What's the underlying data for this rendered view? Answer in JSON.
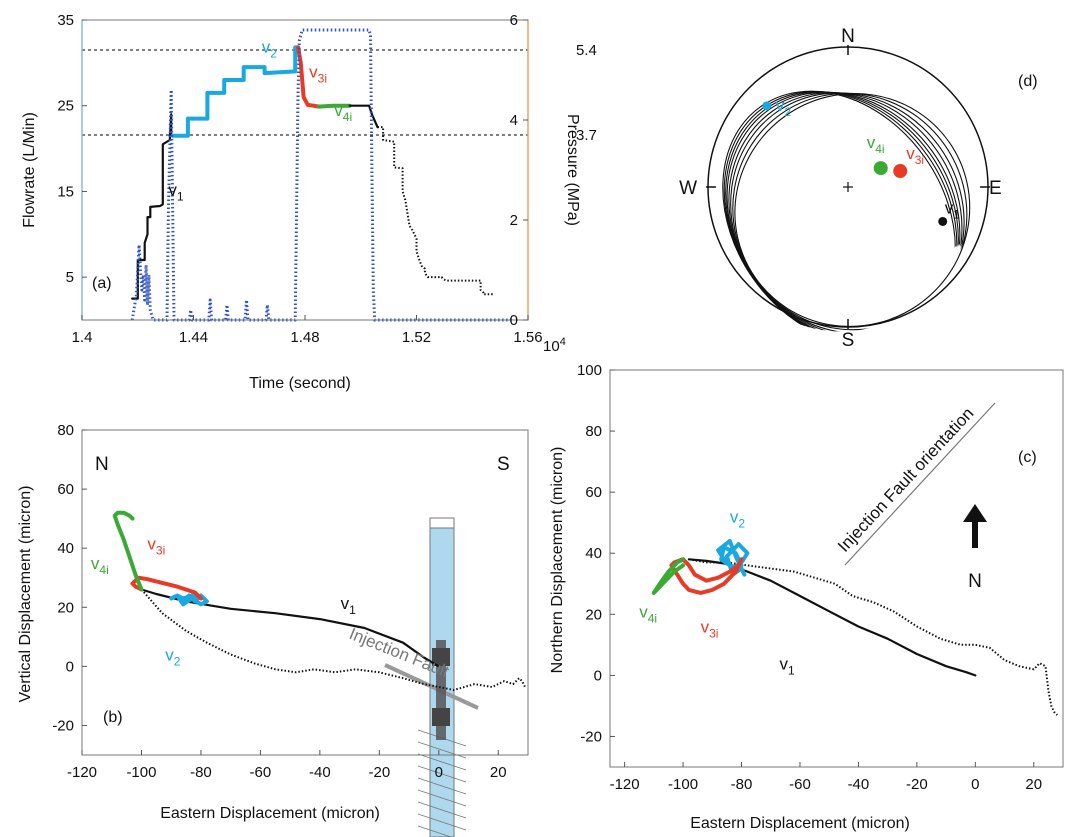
{
  "chart_data": [
    {
      "panel": "(a)",
      "type": "line",
      "xlabel": "Time (second)",
      "ylabel": "Flowrate (L/Min)",
      "ylabel_right": "Pressure (MPa)",
      "x_exponent_label": "10",
      "x_exponent_sup": "4",
      "xlim": [
        1.4,
        1.56
      ],
      "ylim": [
        0,
        35
      ],
      "ylim_right": [
        0,
        6
      ],
      "xticks": [
        "1.4",
        "1.44",
        "1.48",
        "1.52",
        "1.56"
      ],
      "yticks": [
        "5",
        "15",
        "25",
        "35"
      ],
      "yticks_right": [
        "0",
        "2",
        "4",
        "6"
      ],
      "ref_lines": [
        {
          "label": "5.4",
          "pressure": 5.4
        },
        {
          "label": "3.7",
          "pressure": 3.7
        }
      ],
      "series": [
        {
          "name": "v1",
          "sub": "1",
          "color": "#111111",
          "x": [
            1.418,
            1.42,
            1.42,
            1.4225,
            1.4225,
            1.4235,
            1.4235,
            1.4245,
            1.4245,
            1.428,
            1.429,
            1.429,
            1.4315,
            1.432,
            1.432,
            1.4325
          ],
          "y": [
            2.5,
            2.5,
            7,
            7,
            9,
            10,
            12,
            12,
            13.2,
            13.3,
            13.5,
            20.5,
            21,
            24,
            21.5,
            21.5
          ]
        },
        {
          "name": "v2",
          "sub": "2",
          "color": "#19a8e0",
          "x": [
            1.4325,
            1.438,
            1.438,
            1.445,
            1.445,
            1.451,
            1.451,
            1.458,
            1.458,
            1.4655,
            1.4655,
            1.4765,
            1.4765,
            1.4775
          ],
          "y": [
            21.5,
            21.5,
            23.5,
            23.5,
            26.5,
            26.5,
            28,
            28,
            29.5,
            29.5,
            28.8,
            29,
            31.8,
            31.8
          ]
        },
        {
          "name": "v3i",
          "sub": "3i",
          "color": "#e83a24",
          "x": [
            1.4775,
            1.4785,
            1.4795,
            1.481,
            1.483,
            1.485
          ],
          "y": [
            31.8,
            30,
            26,
            25.1,
            25,
            24.9
          ]
        },
        {
          "name": "v4i",
          "sub": "4i",
          "color": "#3aaa35",
          "x": [
            1.485,
            1.49,
            1.496
          ],
          "y": [
            24.9,
            25,
            25
          ]
        },
        {
          "name": "flow-tail",
          "color": "#111111",
          "x": [
            1.496,
            1.503,
            1.504,
            1.506
          ],
          "y": [
            25,
            25,
            24,
            22.5
          ]
        },
        {
          "name": "flow-tail-dotted",
          "color": "#111111",
          "dotted": true,
          "x": [
            1.506,
            1.508,
            1.508,
            1.512,
            1.512,
            1.515,
            1.515,
            1.516,
            1.517,
            1.5175,
            1.5185,
            1.52,
            1.52,
            1.5205,
            1.521,
            1.522,
            1.523,
            1.523,
            1.524,
            1.529,
            1.5295,
            1.53,
            1.531,
            1.543,
            1.543,
            1.544,
            1.544,
            1.548
          ],
          "y": [
            22.5,
            22.5,
            21,
            20.8,
            17.8,
            17.7,
            15,
            14,
            12,
            11,
            10.5,
            9.5,
            8,
            7.5,
            7,
            6.2,
            6,
            5.5,
            5,
            5,
            4.8,
            4.7,
            4.6,
            4.6,
            3.5,
            3.2,
            3,
            3
          ]
        },
        {
          "name": "pressure",
          "color": "#2f52c8",
          "axis": "right",
          "dotted": true,
          "x": [
            1.418,
            1.4195,
            1.4205,
            1.421,
            1.4215,
            1.422,
            1.4225,
            1.423,
            1.4235,
            1.424,
            1.4245,
            1.4255,
            1.427,
            1.4305,
            1.431,
            1.4315,
            1.432,
            1.433,
            1.4385,
            1.439,
            1.4395,
            1.44,
            1.4455,
            1.446,
            1.4465,
            1.4515,
            1.452,
            1.4525,
            1.4585,
            1.459,
            1.4595,
            1.466,
            1.4665,
            1.467,
            1.4765,
            1.477,
            1.4775,
            1.478,
            1.4785,
            1.479,
            1.503,
            1.5035,
            1.504,
            1.5045,
            1.505,
            1.555
          ],
          "y": [
            0,
            0.5,
            1.5,
            1.0,
            0.6,
            0.9,
            0.4,
            1.1,
            0.3,
            0.9,
            0.2,
            0,
            0,
            0,
            2.2,
            3.4,
            4.6,
            0,
            0,
            0.2,
            0,
            0,
            0,
            0.4,
            0,
            0,
            0.3,
            0,
            0,
            0.4,
            0,
            0,
            0.3,
            0,
            0,
            2.2,
            4.5,
            5.6,
            5.7,
            5.8,
            5.8,
            5.7,
            3.0,
            0.6,
            0,
            0
          ]
        }
      ],
      "annotations": [
        {
          "text": "v",
          "sub": "1",
          "x": 1.431,
          "y": 14.5
        },
        {
          "text": "v",
          "sub": "2",
          "x": 1.4645,
          "y": 31.2
        },
        {
          "text": "v",
          "sub": "3i",
          "x": 1.4815,
          "y": 28.3
        },
        {
          "text": "v",
          "sub": "4i",
          "x": 1.4905,
          "y": 23.8
        }
      ]
    },
    {
      "panel": "(b)",
      "type": "line",
      "xlabel": "Eastern Displacement (micron)",
      "ylabel": "Vertical Displacement (micron)",
      "xlim": [
        -120,
        30
      ],
      "ylim": [
        -30,
        80
      ],
      "xticks": [
        "-120",
        "-100",
        "-80",
        "-60",
        "-40",
        "-20",
        "0",
        "20"
      ],
      "yticks": [
        "-20",
        "0",
        "20",
        "40",
        "60",
        "80"
      ],
      "corner_labels": {
        "left": "N",
        "right": "S"
      },
      "fault_label": "Injection Fault",
      "series": [
        {
          "name": "v1",
          "sub": "1",
          "color": "#111111",
          "x": [
            -100,
            -95,
            -85,
            -70,
            -55,
            -40,
            -25,
            -12,
            -5,
            0
          ],
          "y": [
            26,
            24.5,
            22,
            19.5,
            18,
            16,
            13,
            8,
            3,
            0
          ]
        },
        {
          "name": "v1-dotted",
          "color": "#111111",
          "dotted": true,
          "x": [
            -100,
            -93,
            -85,
            -78,
            -70,
            -62,
            -55,
            -48,
            -42,
            -35,
            -28,
            -20,
            -12,
            -5,
            0,
            5,
            12,
            18,
            22,
            25,
            27,
            28,
            29
          ],
          "y": [
            26,
            18,
            12,
            8,
            4,
            1,
            -1,
            -2,
            -1,
            -2,
            -1,
            -2,
            -4,
            -6,
            -7,
            -8,
            -6,
            -7,
            -5,
            -6,
            -4,
            -5,
            -7
          ]
        },
        {
          "name": "v2",
          "sub": "2",
          "color": "#19a8e0",
          "x": [
            -90,
            -88,
            -86,
            -84,
            -82,
            -80,
            -78,
            -80,
            -83,
            -86,
            -88,
            -86,
            -83,
            -80
          ],
          "y": [
            23,
            24,
            22,
            24,
            22,
            24,
            22,
            21,
            23,
            21,
            24,
            23,
            24,
            23
          ]
        },
        {
          "name": "v3i",
          "sub": "3i",
          "color": "#e83a24",
          "x": [
            -80,
            -82,
            -88,
            -94,
            -98,
            -101,
            -103,
            -102,
            -100
          ],
          "y": [
            23,
            25,
            27,
            28.5,
            29.5,
            30,
            28,
            27,
            26
          ]
        },
        {
          "name": "v4i",
          "sub": "4i",
          "color": "#3aaa35",
          "x": [
            -100,
            -102,
            -104,
            -106,
            -108,
            -109,
            -108,
            -106,
            -104,
            -103
          ],
          "y": [
            26,
            31,
            37,
            43,
            48,
            51,
            52,
            52,
            51,
            50
          ]
        }
      ],
      "annotations": [
        {
          "text": "v",
          "sub": "1",
          "x": -33,
          "y": 19.5
        },
        {
          "text": "v",
          "sub": "2",
          "x": -92,
          "y": 2
        },
        {
          "text": "v",
          "sub": "3i",
          "x": -98,
          "y": 39.5
        },
        {
          "text": "v",
          "sub": "4i",
          "x": -117,
          "y": 33
        }
      ]
    },
    {
      "panel": "(c)",
      "type": "line",
      "xlabel": "Eastern Displacement (micron)",
      "ylabel": "Northern Displacement (micron)",
      "xlim": [
        -125,
        30
      ],
      "ylim": [
        -30,
        100
      ],
      "xticks": [
        "-120",
        "-100",
        "-80",
        "-60",
        "-40",
        "-20",
        "0",
        "20"
      ],
      "yticks": [
        "-20",
        "0",
        "20",
        "40",
        "60",
        "80",
        "100"
      ],
      "orientation_label": "Injection Fault orientation",
      "north_label": "N",
      "series": [
        {
          "name": "v1",
          "sub": "1",
          "color": "#111111",
          "x": [
            -98,
            -92,
            -85,
            -78,
            -70,
            -60,
            -50,
            -40,
            -30,
            -20,
            -10,
            -3,
            0
          ],
          "y": [
            38,
            37.5,
            36.5,
            34,
            31,
            26,
            21,
            16,
            12,
            7,
            3,
            1,
            0
          ]
        },
        {
          "name": "v1-dotted",
          "color": "#111111",
          "dotted": true,
          "x": [
            -98,
            -92,
            -85,
            -78,
            -70,
            -62,
            -55,
            -48,
            -42,
            -35,
            -28,
            -20,
            -12,
            -5,
            0,
            5,
            10,
            15,
            20,
            22,
            24,
            25,
            26,
            27,
            28
          ],
          "y": [
            38,
            37,
            37,
            36,
            35,
            34,
            32,
            30,
            26,
            24,
            21,
            16,
            12,
            10,
            10,
            9,
            5,
            3,
            2,
            4,
            3,
            -5,
            -10,
            -12,
            -13
          ]
        },
        {
          "name": "v2",
          "sub": "2",
          "color": "#19a8e0",
          "x": [
            -80,
            -82,
            -86,
            -87,
            -84,
            -80,
            -83,
            -85,
            -81,
            -78,
            -80,
            -83,
            -86,
            -88,
            -84,
            -82,
            -79
          ],
          "y": [
            36,
            40,
            42,
            38,
            36,
            35,
            33,
            39,
            43,
            40,
            37,
            35,
            38,
            41,
            44,
            39,
            33
          ]
        },
        {
          "name": "v3i",
          "sub": "3i",
          "color": "#e83a24",
          "x": [
            -80,
            -82,
            -86,
            -90,
            -94,
            -98,
            -100,
            -102,
            -104,
            -103,
            -100,
            -98,
            -96,
            -92,
            -88,
            -84,
            -81,
            -80
          ],
          "y": [
            38,
            34,
            30,
            28,
            27,
            28,
            30,
            33,
            36,
            37,
            38,
            36,
            33,
            31,
            32,
            34,
            36,
            38
          ]
        },
        {
          "name": "v4i",
          "sub": "4i",
          "color": "#3aaa35",
          "x": [
            -100,
            -103,
            -106,
            -109,
            -110,
            -108,
            -105,
            -102,
            -100
          ],
          "y": [
            36,
            34,
            31,
            28,
            27,
            30,
            34,
            37,
            38
          ]
        }
      ],
      "annotations": [
        {
          "text": "v",
          "sub": "1",
          "x": -67,
          "y": 2
        },
        {
          "text": "v",
          "sub": "2",
          "x": -84,
          "y": 50
        },
        {
          "text": "v",
          "sub": "3i",
          "x": -94,
          "y": 14
        },
        {
          "text": "v",
          "sub": "4i",
          "x": -115,
          "y": 19
        }
      ]
    },
    {
      "panel": "(d)",
      "type": "stereonet",
      "compass": {
        "N": "N",
        "S": "S",
        "E": "E",
        "W": "W"
      },
      "points": [
        {
          "name": "v2",
          "sub": "2",
          "color": "#19a8e0",
          "az_deg": 315,
          "r": 0.82
        },
        {
          "name": "v4i",
          "sub": "4i",
          "color": "#3aaa35",
          "az_deg": 60,
          "r": 0.27
        },
        {
          "name": "v3i",
          "sub": "3i",
          "color": "#e83a24",
          "az_deg": 73,
          "r": 0.39
        },
        {
          "name": "v1",
          "sub": "1",
          "color": "#111111",
          "az_deg": 110,
          "r": 0.72
        }
      ],
      "great_circles": [
        0.5,
        0.55,
        0.6,
        0.64,
        0.68,
        0.71,
        0.74,
        0.77
      ]
    }
  ]
}
